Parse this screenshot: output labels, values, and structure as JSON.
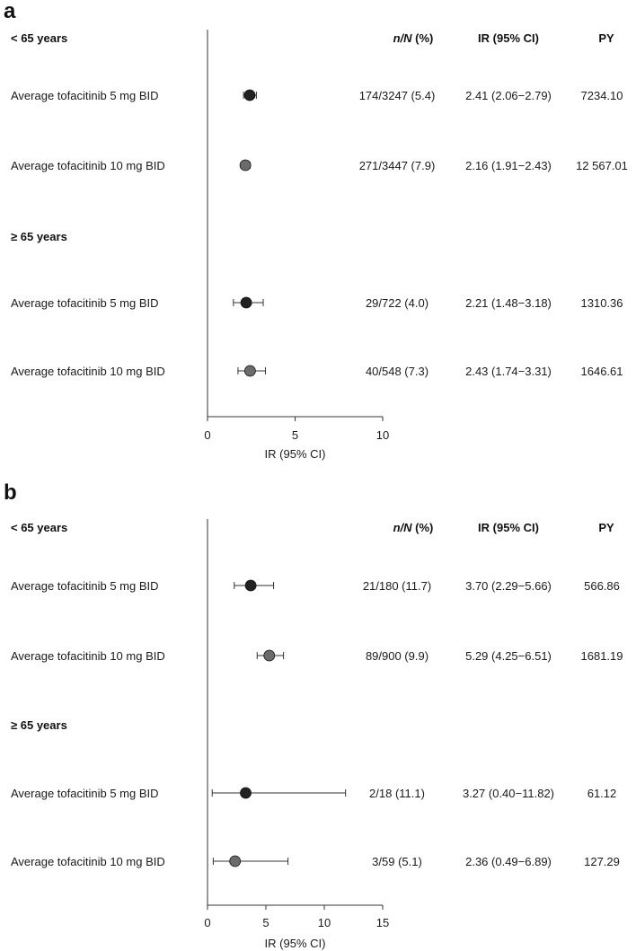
{
  "chart_data": [
    {
      "type": "forest",
      "panel_label": "a",
      "xlabel": "IR (95% CI)",
      "xlim": [
        0,
        10
      ],
      "xticks": [
        0,
        5,
        10
      ],
      "columns": {
        "n_N_italic": "n/N",
        "n_N_rest": " (%)",
        "ir": "IR (95% CI)",
        "py": "PY"
      },
      "groups": [
        {
          "label": "< 65 years",
          "rows": [
            {
              "label": "Average tofacitinib 5 mg BID",
              "ir": 2.41,
              "lo": 2.06,
              "hi": 2.79,
              "n": "174/3247 (5.4)",
              "ir_text": "2.41 (2.06−2.79)",
              "py": "7234.10",
              "color": "#222222"
            },
            {
              "label": "Average tofacitinib 10 mg BID",
              "ir": 2.16,
              "lo": 1.91,
              "hi": 2.43,
              "n": "271/3447 (7.9)",
              "ir_text": "2.16 (1.91−2.43)",
              "py": "12 567.01",
              "color": "#6b6b6b"
            }
          ]
        },
        {
          "label": "≥ 65 years",
          "rows": [
            {
              "label": "Average tofacitinib 5 mg BID",
              "ir": 2.21,
              "lo": 1.48,
              "hi": 3.18,
              "n": "29/722 (4.0)",
              "ir_text": "2.21 (1.48−3.18)",
              "py": "1310.36",
              "color": "#222222"
            },
            {
              "label": "Average tofacitinib 10 mg BID",
              "ir": 2.43,
              "lo": 1.74,
              "hi": 3.31,
              "n": "40/548 (7.3)",
              "ir_text": "2.43 (1.74−3.31)",
              "py": "1646.61",
              "color": "#6b6b6b"
            }
          ]
        }
      ]
    },
    {
      "type": "forest",
      "panel_label": "b",
      "xlabel": "IR (95% CI)",
      "xlim": [
        0,
        15
      ],
      "xticks": [
        0,
        5,
        10,
        15
      ],
      "columns": {
        "n_N_italic": "n/N",
        "n_N_rest": " (%)",
        "ir": "IR (95% CI)",
        "py": "PY"
      },
      "groups": [
        {
          "label": "< 65 years",
          "rows": [
            {
              "label": "Average tofacitinib 5 mg BID",
              "ir": 3.7,
              "lo": 2.29,
              "hi": 5.66,
              "n": "21/180 (11.7)",
              "ir_text": "3.70 (2.29−5.66)",
              "py": "566.86",
              "color": "#222222"
            },
            {
              "label": "Average tofacitinib 10 mg BID",
              "ir": 5.29,
              "lo": 4.25,
              "hi": 6.51,
              "n": "89/900 (9.9)",
              "ir_text": "5.29 (4.25−6.51)",
              "py": "1681.19",
              "color": "#6b6b6b"
            }
          ]
        },
        {
          "label": "≥ 65 years",
          "rows": [
            {
              "label": "Average tofacitinib 5 mg BID",
              "ir": 3.27,
              "lo": 0.4,
              "hi": 11.82,
              "n": "2/18 (11.1)",
              "ir_text": "3.27 (0.40−11.82)",
              "py": "61.12",
              "color": "#222222"
            },
            {
              "label": "Average tofacitinib 10 mg BID",
              "ir": 2.36,
              "lo": 0.49,
              "hi": 6.89,
              "n": "3/59 (5.1)",
              "ir_text": "2.36 (0.49−6.89)",
              "py": "127.29",
              "color": "#6b6b6b"
            }
          ]
        }
      ]
    }
  ]
}
